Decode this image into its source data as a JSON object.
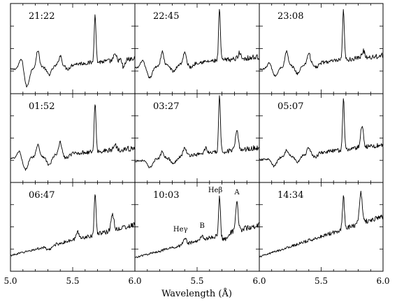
{
  "chart_data": {
    "type": "line",
    "layout": "3x3 grid of small-multiple spectra",
    "xlabel": "Wavelength (Å)",
    "xlim": [
      5.0,
      6.0
    ],
    "x_ticks": [
      "5.0",
      "5.5",
      "6.0"
    ],
    "y_ticks_labeled": false,
    "grid": false,
    "legend": "none",
    "panels": [
      {
        "label": "21:22",
        "base": 0.7,
        "slope": 0.15,
        "lines": [
          [
            5.09,
            0.16,
            0.018
          ],
          [
            5.22,
            0.24,
            0.012
          ],
          [
            5.4,
            0.14,
            0.012
          ],
          [
            5.68,
            0.72,
            0.007
          ],
          [
            5.84,
            0.08,
            0.012
          ]
        ],
        "dips": [
          [
            5.13,
            0.28,
            0.02
          ],
          [
            5.31,
            0.12,
            0.02
          ],
          [
            5.46,
            0.06,
            0.02
          ],
          [
            5.91,
            0.12,
            0.01
          ]
        ]
      },
      {
        "label": "22:45",
        "base": 0.72,
        "slope": 0.16,
        "lines": [
          [
            5.06,
            0.1,
            0.015
          ],
          [
            5.22,
            0.2,
            0.012
          ],
          [
            5.4,
            0.16,
            0.012
          ],
          [
            5.68,
            0.75,
            0.007
          ],
          [
            5.84,
            0.08,
            0.012
          ]
        ],
        "dips": [
          [
            5.12,
            0.16,
            0.02
          ],
          [
            5.31,
            0.1,
            0.02
          ],
          [
            5.45,
            0.06,
            0.02
          ]
        ]
      },
      {
        "label": "23:08",
        "base": 0.7,
        "slope": 0.2,
        "lines": [
          [
            5.08,
            0.08,
            0.015
          ],
          [
            5.22,
            0.22,
            0.012
          ],
          [
            5.4,
            0.16,
            0.012
          ],
          [
            5.68,
            0.72,
            0.007
          ],
          [
            5.84,
            0.1,
            0.012
          ]
        ],
        "dips": [
          [
            5.13,
            0.12,
            0.02
          ],
          [
            5.31,
            0.12,
            0.02
          ],
          [
            5.46,
            0.06,
            0.02
          ]
        ]
      },
      {
        "label": "01:52",
        "base": 0.7,
        "slope": 0.15,
        "lines": [
          [
            5.07,
            0.1,
            0.015
          ],
          [
            5.22,
            0.18,
            0.012
          ],
          [
            5.4,
            0.18,
            0.012
          ],
          [
            5.68,
            0.72,
            0.007
          ],
          [
            5.84,
            0.08,
            0.012
          ]
        ],
        "dips": [
          [
            5.12,
            0.18,
            0.02
          ],
          [
            5.31,
            0.14,
            0.02
          ],
          [
            5.45,
            0.06,
            0.02
          ]
        ]
      },
      {
        "label": "03:27",
        "base": 0.66,
        "slope": 0.2,
        "lines": [
          [
            5.22,
            0.1,
            0.012
          ],
          [
            5.4,
            0.12,
            0.012
          ],
          [
            5.57,
            0.08,
            0.012
          ],
          [
            5.68,
            0.84,
            0.007
          ],
          [
            5.82,
            0.26,
            0.012
          ]
        ],
        "dips": [
          [
            5.12,
            0.12,
            0.02
          ],
          [
            5.31,
            0.1,
            0.02
          ]
        ]
      },
      {
        "label": "05:07",
        "base": 0.68,
        "slope": 0.22,
        "lines": [
          [
            5.22,
            0.1,
            0.012
          ],
          [
            5.4,
            0.1,
            0.012
          ],
          [
            5.68,
            0.74,
            0.007
          ],
          [
            5.83,
            0.3,
            0.012
          ]
        ],
        "dips": [
          [
            5.12,
            0.12,
            0.02
          ],
          [
            5.31,
            0.1,
            0.02
          ],
          [
            5.45,
            0.06,
            0.02
          ]
        ]
      },
      {
        "label": "06:47",
        "base": 0.58,
        "slope": 0.45,
        "lines": [
          [
            5.54,
            0.1,
            0.012
          ],
          [
            5.68,
            0.62,
            0.007
          ],
          [
            5.82,
            0.22,
            0.012
          ]
        ],
        "dips": [
          [
            5.31,
            0.06,
            0.02
          ]
        ]
      },
      {
        "label": "10:03",
        "base": 0.55,
        "slope": 0.48,
        "lines": [
          [
            5.4,
            0.1,
            0.012
          ],
          [
            5.54,
            0.06,
            0.012
          ],
          [
            5.68,
            0.6,
            0.007
          ],
          [
            5.82,
            0.4,
            0.01
          ]
        ],
        "dips": [
          [
            5.72,
            0.08,
            0.02
          ]
        ]
      },
      {
        "label": "14:34",
        "base": 0.56,
        "slope": 0.6,
        "lines": [
          [
            5.68,
            0.48,
            0.008
          ],
          [
            5.82,
            0.44,
            0.012
          ]
        ],
        "dips": []
      }
    ],
    "annotations": [
      {
        "panel": "10:03",
        "text": "Heγ",
        "x": 5.4
      },
      {
        "panel": "10:03",
        "text": "B",
        "x": 5.54
      },
      {
        "panel": "10:03",
        "text": "Heβ",
        "x": 5.68
      },
      {
        "panel": "10:03",
        "text": "A",
        "x": 5.82
      }
    ]
  }
}
